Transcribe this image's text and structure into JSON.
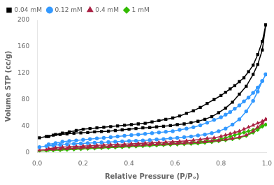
{
  "chart_data": {
    "type": "line",
    "xlabel": "Relative Pressure (P/Pₒ)",
    "ylabel": "Volume STP (cc/g)",
    "xlim": [
      0,
      1.0
    ],
    "ylim": [
      0,
      200
    ],
    "xticks": [
      {
        "value": 0.0,
        "label": "0.0"
      },
      0.2,
      0.4,
      0.6,
      0.8,
      {
        "value": 1.0,
        "label": "1.0"
      }
    ],
    "yticks": [
      0,
      40,
      80,
      120,
      160,
      200
    ],
    "grid": false,
    "legend": "upper left",
    "series": [
      {
        "name": "0.04 mM",
        "color": "#000000",
        "marker": "square",
        "x": [
          0.01,
          0.04,
          0.07,
          0.1,
          0.13,
          0.16,
          0.19,
          0.22,
          0.25,
          0.28,
          0.31,
          0.34,
          0.37,
          0.4,
          0.43,
          0.46,
          0.49,
          0.52,
          0.55,
          0.58,
          0.61,
          0.64,
          0.67,
          0.7,
          0.73,
          0.76,
          0.79,
          0.82,
          0.85,
          0.88,
          0.91,
          0.94,
          0.96,
          0.98,
          0.995,
          0.995,
          0.98,
          0.96,
          0.94,
          0.92,
          0.9,
          0.88,
          0.86,
          0.84,
          0.82,
          0.8,
          0.77,
          0.74,
          0.71,
          0.68,
          0.65,
          0.62,
          0.59,
          0.56,
          0.53,
          0.5,
          0.47,
          0.44,
          0.41,
          0.38,
          0.35,
          0.32,
          0.29,
          0.26,
          0.23,
          0.2,
          0.17,
          0.14,
          0.11,
          0.08,
          0.05
        ],
        "values": [
          22,
          24,
          26,
          27,
          28,
          29,
          29.5,
          30,
          31,
          31.5,
          32,
          33,
          34,
          35,
          36,
          37,
          37.5,
          38.5,
          39.5,
          40.5,
          42,
          43,
          45,
          47,
          50,
          54,
          60,
          67,
          76,
          88,
          100,
          118,
          133,
          155,
          193,
          193,
          168,
          148,
          132,
          122,
          113,
          107,
          101,
          96,
          91,
          86,
          80,
          74,
          68,
          63,
          59,
          55,
          52,
          50,
          48,
          46,
          44,
          43,
          42,
          41,
          40,
          39,
          38,
          37,
          36,
          35,
          33,
          31,
          29,
          27,
          24
        ]
      },
      {
        "name": "0.12 mM",
        "color": "#3399ff",
        "marker": "circle",
        "x": [
          0.01,
          0.04,
          0.07,
          0.1,
          0.13,
          0.16,
          0.19,
          0.22,
          0.25,
          0.28,
          0.31,
          0.34,
          0.37,
          0.4,
          0.43,
          0.46,
          0.49,
          0.52,
          0.55,
          0.58,
          0.61,
          0.64,
          0.67,
          0.7,
          0.73,
          0.76,
          0.79,
          0.82,
          0.85,
          0.88,
          0.91,
          0.94,
          0.96,
          0.98,
          0.995,
          0.995,
          0.98,
          0.96,
          0.94,
          0.92,
          0.9,
          0.88,
          0.86,
          0.84,
          0.82,
          0.8,
          0.77,
          0.74,
          0.71,
          0.68,
          0.65,
          0.62,
          0.59,
          0.56,
          0.53,
          0.5,
          0.47,
          0.44,
          0.41,
          0.38,
          0.35,
          0.32,
          0.29,
          0.26,
          0.23,
          0.2,
          0.17,
          0.14,
          0.11,
          0.08,
          0.05
        ],
        "values": [
          8,
          9.5,
          10.5,
          11.5,
          12.5,
          13,
          13.5,
          14,
          14.5,
          15,
          15.5,
          16,
          16.5,
          17,
          17.5,
          18,
          18.5,
          19.5,
          20,
          21,
          22,
          23,
          24,
          25.5,
          27,
          29,
          32,
          36,
          42,
          50,
          62,
          78,
          92,
          108,
          118,
          118,
          108,
          98,
          90,
          83,
          77,
          71,
          66,
          61,
          57,
          53,
          49,
          45,
          41,
          38,
          36,
          34,
          32,
          31,
          30,
          29,
          28,
          27,
          26,
          25,
          24,
          23,
          22,
          21,
          20,
          19,
          18,
          17,
          16,
          14,
          12
        ]
      },
      {
        "name": "0.4 mM",
        "color": "#aa2244",
        "marker": "triangle",
        "x": [
          0.01,
          0.04,
          0.07,
          0.1,
          0.13,
          0.16,
          0.19,
          0.22,
          0.25,
          0.28,
          0.31,
          0.34,
          0.37,
          0.4,
          0.43,
          0.46,
          0.49,
          0.52,
          0.55,
          0.58,
          0.61,
          0.64,
          0.67,
          0.7,
          0.73,
          0.76,
          0.79,
          0.82,
          0.85,
          0.88,
          0.91,
          0.94,
          0.96,
          0.98,
          0.995,
          0.995,
          0.98,
          0.96,
          0.94,
          0.92,
          0.9,
          0.88,
          0.86,
          0.84,
          0.82,
          0.8,
          0.77,
          0.74,
          0.71,
          0.68,
          0.65,
          0.62,
          0.59,
          0.56,
          0.53,
          0.5,
          0.47,
          0.44,
          0.41,
          0.38,
          0.35,
          0.32,
          0.29,
          0.26,
          0.23,
          0.2,
          0.17,
          0.14,
          0.11,
          0.08,
          0.05
        ],
        "values": [
          3.5,
          4,
          4.5,
          5,
          5.5,
          6,
          6.5,
          7,
          7.5,
          8,
          8.5,
          9,
          9.5,
          10,
          10.5,
          11,
          11.5,
          12,
          12.5,
          13,
          13.5,
          14,
          14.5,
          15,
          16,
          17,
          18,
          19.5,
          21,
          23,
          26,
          32,
          38,
          44,
          50,
          50,
          47,
          44,
          41,
          38,
          35,
          32,
          30,
          28,
          26,
          24,
          22,
          21,
          19.5,
          18.5,
          17.5,
          16.5,
          16,
          15.5,
          15,
          14.5,
          14,
          13.5,
          13,
          12.5,
          12,
          11.5,
          11,
          10.5,
          10,
          9.5,
          9,
          8.5,
          8,
          7,
          5.5
        ]
      },
      {
        "name": "1 mM",
        "color": "#33bb00",
        "marker": "diamond",
        "x": [
          0.01,
          0.04,
          0.07,
          0.1,
          0.13,
          0.16,
          0.19,
          0.22,
          0.25,
          0.28,
          0.31,
          0.34,
          0.37,
          0.4,
          0.43,
          0.46,
          0.49,
          0.52,
          0.55,
          0.58,
          0.61,
          0.64,
          0.67,
          0.7,
          0.73,
          0.76,
          0.79,
          0.82,
          0.85,
          0.88,
          0.91,
          0.94,
          0.96,
          0.98,
          0.995,
          0.995,
          0.98,
          0.96,
          0.94,
          0.92,
          0.9,
          0.88,
          0.86,
          0.84,
          0.82,
          0.8,
          0.77,
          0.74,
          0.71,
          0.68,
          0.65,
          0.62,
          0.59,
          0.56,
          0.53,
          0.5,
          0.47,
          0.44,
          0.41,
          0.38,
          0.35,
          0.32,
          0.29,
          0.26,
          0.23,
          0.2,
          0.17,
          0.14,
          0.11,
          0.08,
          0.05
        ],
        "values": [
          2,
          2.5,
          3,
          3.5,
          4,
          4.5,
          5,
          5.5,
          6,
          6.5,
          7,
          7.5,
          8,
          8.5,
          9,
          9.5,
          10,
          10.5,
          11,
          11.5,
          12,
          12.5,
          13,
          13.5,
          14.5,
          15.5,
          17,
          18.5,
          20,
          22,
          25,
          30,
          34,
          39,
          42,
          42,
          40,
          37,
          34,
          32,
          30,
          28,
          26,
          24,
          22,
          20,
          18.5,
          17,
          16,
          15,
          14.5,
          14,
          13.5,
          13,
          12.5,
          12,
          11.5,
          11,
          10.5,
          10,
          9.5,
          9,
          8.5,
          8,
          7.5,
          7,
          6.5,
          6,
          5.5,
          5,
          4
        ]
      }
    ]
  }
}
